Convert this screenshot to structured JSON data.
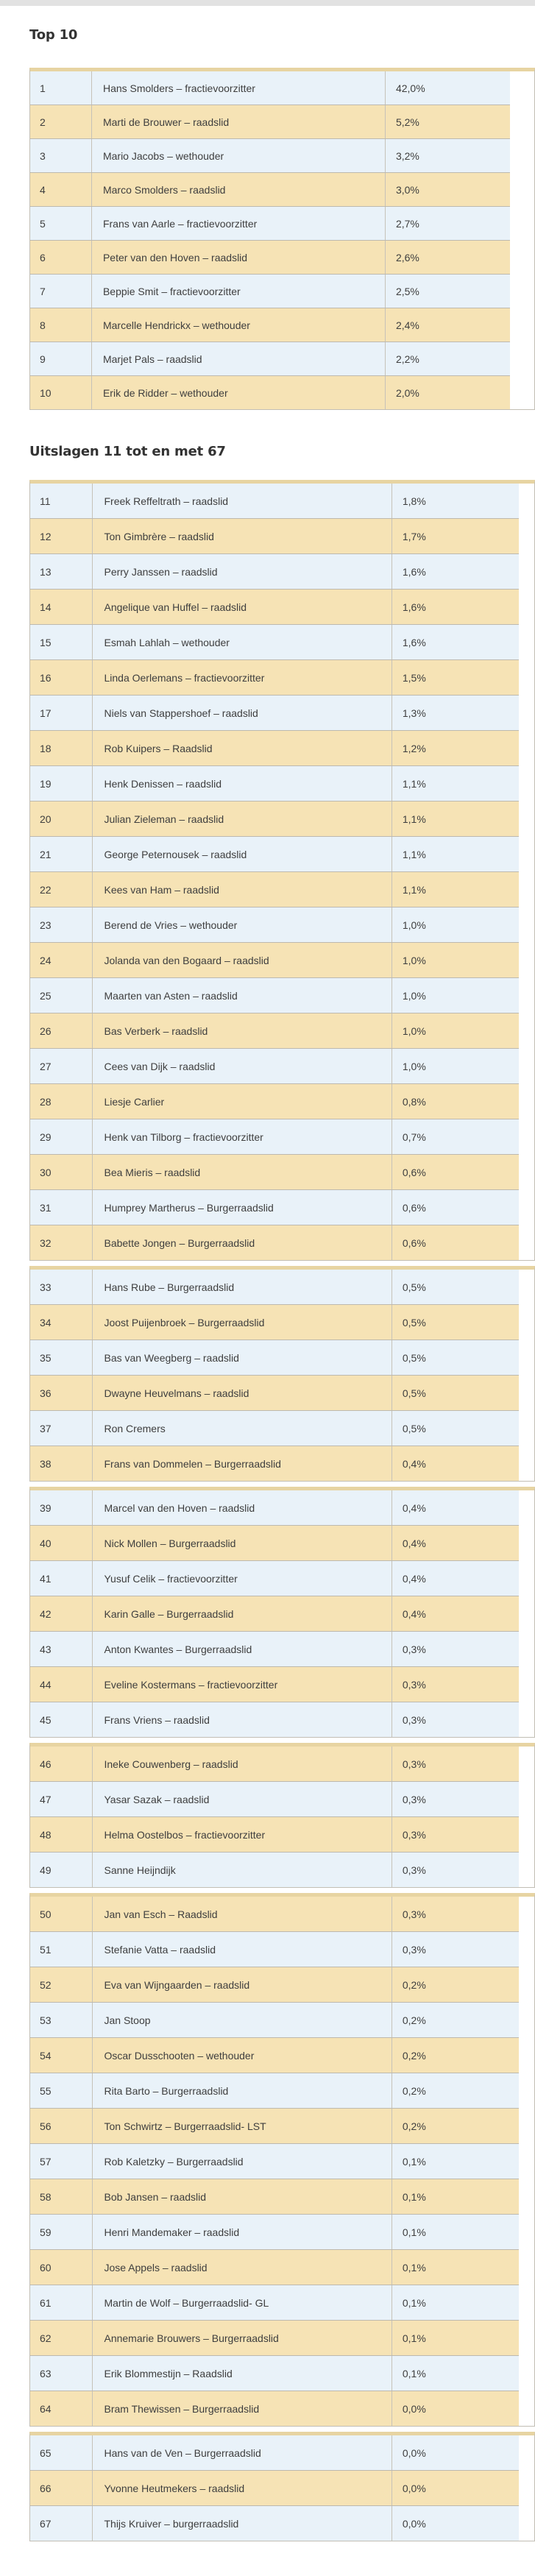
{
  "headings": {
    "top10": "Top 10",
    "rest": "Uitslagen 11 tot en met 67"
  },
  "colors": {
    "row_blue": "#e9f2f9",
    "row_tan": "#f6e3b5",
    "border_gray": "#bdb9af",
    "border_tan": "#e7d4a2",
    "top_strip": "#e2e2e2",
    "text": "#3e3e3e"
  },
  "top10_rows": [
    {
      "rank": "1",
      "name": "Hans Smolders – fractievoorzitter",
      "pct": "42,0%"
    },
    {
      "rank": "2",
      "name": "Marti de Brouwer – raadslid",
      "pct": "5,2%"
    },
    {
      "rank": "3",
      "name": "Mario Jacobs – wethouder",
      "pct": "3,2%"
    },
    {
      "rank": "4",
      "name": "Marco Smolders – raadslid",
      "pct": "3,0%"
    },
    {
      "rank": "5",
      "name": "Frans van Aarle – fractievoorzitter",
      "pct": "2,7%"
    },
    {
      "rank": "6",
      "name": "Peter van den Hoven – raadslid",
      "pct": "2,6%"
    },
    {
      "rank": "7",
      "name": "Beppie Smit – fractievoorzitter",
      "pct": "2,5%"
    },
    {
      "rank": "8",
      "name": "Marcelle Hendrickx – wethouder",
      "pct": "2,4%"
    },
    {
      "rank": "9",
      "name": "Marjet Pals – raadslid",
      "pct": "2,2%"
    },
    {
      "rank": "10",
      "name": "Erik de Ridder – wethouder",
      "pct": "2,0%"
    }
  ],
  "rest_groups": [
    [
      {
        "rank": "11",
        "name": "Freek Reffeltrath – raadslid",
        "pct": "1,8%"
      },
      {
        "rank": "12",
        "name": "Ton Gimbrère – raadslid",
        "pct": "1,7%"
      },
      {
        "rank": "13",
        "name": "Perry Janssen – raadslid",
        "pct": "1,6%"
      },
      {
        "rank": "14",
        "name": "Angelique van Huffel – raadslid",
        "pct": "1,6%"
      },
      {
        "rank": "15",
        "name": "Esmah Lahlah – wethouder",
        "pct": "1,6%"
      },
      {
        "rank": "16",
        "name": "Linda Oerlemans – fractievoorzitter",
        "pct": "1,5%"
      },
      {
        "rank": "17",
        "name": "Niels van Stappershoef – raadslid",
        "pct": "1,3%"
      },
      {
        "rank": "18",
        "name": "Rob Kuipers – Raadslid",
        "pct": "1,2%"
      },
      {
        "rank": "19",
        "name": "Henk Denissen – raadslid",
        "pct": "1,1%"
      },
      {
        "rank": "20",
        "name": "Julian Zieleman – raadslid",
        "pct": "1,1%"
      },
      {
        "rank": "21",
        "name": "George Peternousek – raadslid",
        "pct": "1,1%"
      },
      {
        "rank": "22",
        "name": "Kees van Ham – raadslid",
        "pct": "1,1%"
      },
      {
        "rank": "23",
        "name": "Berend de Vries – wethouder",
        "pct": "1,0%"
      },
      {
        "rank": "24",
        "name": "Jolanda van den Bogaard – raadslid",
        "pct": "1,0%"
      },
      {
        "rank": "25",
        "name": "Maarten van Asten – raadslid",
        "pct": "1,0%"
      },
      {
        "rank": "26",
        "name": "Bas Verberk – raadslid",
        "pct": "1,0%"
      },
      {
        "rank": "27",
        "name": "Cees van Dijk – raadslid",
        "pct": "1,0%"
      },
      {
        "rank": "28",
        "name": "Liesje Carlier",
        "pct": "0,8%"
      },
      {
        "rank": "29",
        "name": "Henk van Tilborg – fractievoorzitter",
        "pct": "0,7%"
      },
      {
        "rank": "30",
        "name": "Bea Mieris – raadslid",
        "pct": "0,6%"
      },
      {
        "rank": "31",
        "name": "Humprey Martherus – Burgerraadslid",
        "pct": "0,6%"
      },
      {
        "rank": "32",
        "name": "Babette Jongen – Burgerraadslid",
        "pct": "0,6%"
      }
    ],
    [
      {
        "rank": "33",
        "name": "Hans Rube – Burgerraadslid",
        "pct": "0,5%"
      },
      {
        "rank": "34",
        "name": "Joost Puijenbroek – Burgerraadslid",
        "pct": "0,5%"
      },
      {
        "rank": "35",
        "name": "Bas van Weegberg – raadslid",
        "pct": "0,5%"
      },
      {
        "rank": "36",
        "name": "Dwayne Heuvelmans – raadslid",
        "pct": "0,5%"
      },
      {
        "rank": "37",
        "name": "Ron Cremers",
        "pct": "0,5%"
      },
      {
        "rank": "38",
        "name": "Frans van Dommelen – Burgerraadslid",
        "pct": "0,4%"
      }
    ],
    [
      {
        "rank": "39",
        "name": "Marcel van den Hoven – raadslid",
        "pct": "0,4%"
      },
      {
        "rank": "40",
        "name": "Nick Mollen – Burgerraadslid",
        "pct": "0,4%"
      },
      {
        "rank": "41",
        "name": "Yusuf Celik – fractievoorzitter",
        "pct": "0,4%"
      },
      {
        "rank": "42",
        "name": "Karin Galle – Burgerraadslid",
        "pct": "0,4%"
      },
      {
        "rank": "43",
        "name": "Anton Kwantes – Burgerraadslid",
        "pct": "0,3%"
      },
      {
        "rank": "44",
        "name": "Eveline Kostermans – fractievoorzitter",
        "pct": "0,3%"
      },
      {
        "rank": "45",
        "name": "Frans Vriens – raadslid",
        "pct": "0,3%"
      }
    ],
    [
      {
        "rank": "46",
        "name": "Ineke Couwenberg – raadslid",
        "pct": "0,3%"
      },
      {
        "rank": "47",
        "name": "Yasar Sazak – raadslid",
        "pct": "0,3%"
      },
      {
        "rank": "48",
        "name": "Helma Oostelbos – fractievoorzitter",
        "pct": "0,3%"
      },
      {
        "rank": "49",
        "name": "Sanne Heijndijk",
        "pct": "0,3%"
      }
    ],
    [
      {
        "rank": "50",
        "name": "Jan van Esch – Raadslid",
        "pct": "0,3%"
      },
      {
        "rank": "51",
        "name": "Stefanie Vatta – raadslid",
        "pct": "0,3%"
      },
      {
        "rank": "52",
        "name": "Eva van Wijngaarden – raadslid",
        "pct": "0,2%"
      },
      {
        "rank": "53",
        "name": "Jan Stoop",
        "pct": "0,2%"
      },
      {
        "rank": "54",
        "name": "Oscar Dusschooten – wethouder",
        "pct": "0,2%"
      },
      {
        "rank": "55",
        "name": "Rita Barto – Burgerraadslid",
        "pct": "0,2%"
      },
      {
        "rank": "56",
        "name": "Ton Schwirtz – Burgerraadslid- LST",
        "pct": "0,2%"
      },
      {
        "rank": "57",
        "name": "Rob Kaletzky – Burgerraadslid",
        "pct": "0,1%"
      },
      {
        "rank": "58",
        "name": "Bob Jansen – raadslid",
        "pct": "0,1%"
      },
      {
        "rank": "59",
        "name": "Henri Mandemaker – raadslid",
        "pct": "0,1%"
      },
      {
        "rank": "60",
        "name": "Jose Appels – raadslid",
        "pct": "0,1%"
      },
      {
        "rank": "61",
        "name": "Martin de Wolf – Burgerraadslid- GL",
        "pct": "0,1%"
      },
      {
        "rank": "62",
        "name": "Annemarie Brouwers – Burgerraadslid",
        "pct": "0,1%"
      },
      {
        "rank": "63",
        "name": "Erik Blommestijn – Raadslid",
        "pct": "0,1%"
      },
      {
        "rank": "64",
        "name": "Bram Thewissen – Burgerraadslid",
        "pct": "0,0%"
      }
    ],
    [
      {
        "rank": "65",
        "name": "Hans van de Ven – Burgerraadslid",
        "pct": "0,0%"
      },
      {
        "rank": "66",
        "name": "Yvonne Heutmekers – raadslid",
        "pct": "0,0%"
      },
      {
        "rank": "67",
        "name": "Thijs Kruiver – burgerraadslid",
        "pct": "0,0%"
      }
    ]
  ]
}
